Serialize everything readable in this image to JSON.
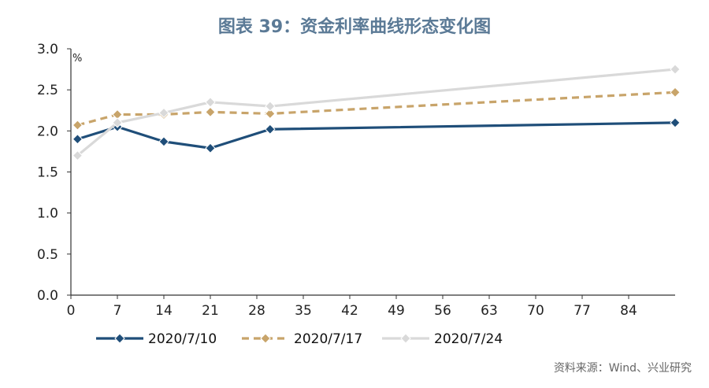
{
  "title": "图表 39：资金利率曲线形态变化图",
  "source_note": "资料来源：Wind、兴业研究",
  "chart_data": {
    "type": "line",
    "title": "图表 39：资金利率曲线形态变化图",
    "y_unit": "%",
    "ylim": [
      0,
      3.0
    ],
    "y_ticks": [
      "0.0",
      "0.5",
      "1.0",
      "1.5",
      "2.0",
      "2.5",
      "3.0"
    ],
    "xlim": [
      0,
      91
    ],
    "x_ticks": [
      "0",
      "7",
      "14",
      "21",
      "28",
      "35",
      "42",
      "49",
      "56",
      "63",
      "70",
      "77",
      "84"
    ],
    "grid": false,
    "legend_position": "bottom",
    "series": [
      {
        "name": "2020/7/10",
        "color": "#1f4e79",
        "style": "solid",
        "marker": "diamond",
        "points": [
          [
            1,
            1.9
          ],
          [
            7,
            2.05
          ],
          [
            14,
            1.87
          ],
          [
            21,
            1.79
          ],
          [
            30,
            2.02
          ],
          [
            91,
            2.1
          ]
        ]
      },
      {
        "name": "2020/7/17",
        "color": "#c8a46a",
        "style": "dashed",
        "marker": "diamond",
        "points": [
          [
            1,
            2.07
          ],
          [
            7,
            2.2
          ],
          [
            14,
            2.2
          ],
          [
            21,
            2.23
          ],
          [
            30,
            2.21
          ],
          [
            91,
            2.47
          ]
        ]
      },
      {
        "name": "2020/7/24",
        "color": "#d9d9d9",
        "style": "solid",
        "marker": "diamond",
        "points": [
          [
            1,
            1.7
          ],
          [
            7,
            2.1
          ],
          [
            14,
            2.22
          ],
          [
            21,
            2.35
          ],
          [
            30,
            2.3
          ],
          [
            91,
            2.75
          ]
        ]
      }
    ]
  }
}
